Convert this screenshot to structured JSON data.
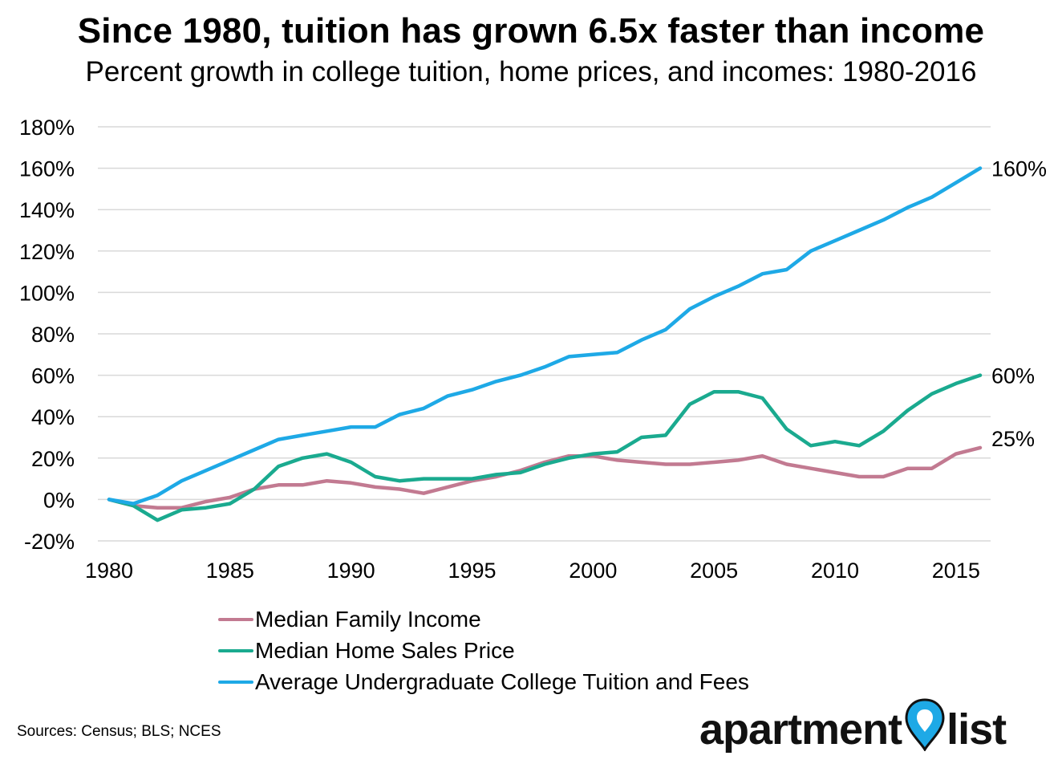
{
  "header": {
    "title": "Since 1980, tuition has grown 6.5x faster than income",
    "subtitle": "Percent growth in college tuition, home prices, and incomes: 1980-2016"
  },
  "chart_data": {
    "type": "line",
    "title": "Since 1980, tuition has grown 6.5x faster than income",
    "subtitle": "Percent growth in college tuition, home prices, and incomes: 1980-2016",
    "xlabel": "",
    "ylabel": "",
    "x": [
      1980,
      1981,
      1982,
      1983,
      1984,
      1985,
      1986,
      1987,
      1988,
      1989,
      1990,
      1991,
      1992,
      1993,
      1994,
      1995,
      1996,
      1997,
      1998,
      1999,
      2000,
      2001,
      2002,
      2003,
      2004,
      2005,
      2006,
      2007,
      2008,
      2009,
      2010,
      2011,
      2012,
      2013,
      2014,
      2015,
      2016
    ],
    "xlim": [
      1980,
      2016
    ],
    "ylim": [
      -20,
      180
    ],
    "grid": true,
    "x_ticks": [
      "1980",
      "1985",
      "1990",
      "1995",
      "2000",
      "2005",
      "2010",
      "2015"
    ],
    "x_tick_values": [
      1980,
      1985,
      1990,
      1995,
      2000,
      2005,
      2010,
      2015
    ],
    "y_ticks": [
      "-20%",
      "0%",
      "20%",
      "40%",
      "60%",
      "80%",
      "100%",
      "120%",
      "140%",
      "160%",
      "180%"
    ],
    "y_tick_values": [
      -20,
      0,
      20,
      40,
      60,
      80,
      100,
      120,
      140,
      160,
      180
    ],
    "series": [
      {
        "name": "Median Family Income",
        "color": "#c27a91",
        "values": [
          0,
          -3,
          -4,
          -4,
          -1,
          1,
          5,
          7,
          7,
          9,
          8,
          6,
          5,
          3,
          6,
          9,
          11,
          14,
          18,
          21,
          21,
          19,
          18,
          17,
          17,
          18,
          19,
          21,
          17,
          15,
          13,
          11,
          11,
          15,
          15,
          22,
          25
        ],
        "end_label": "25%"
      },
      {
        "name": "Median Home Sales Price",
        "color": "#1aaa8f",
        "values": [
          0,
          -3,
          -10,
          -5,
          -4,
          -2,
          5,
          16,
          20,
          22,
          18,
          11,
          9,
          10,
          10,
          10,
          12,
          13,
          17,
          20,
          22,
          23,
          30,
          31,
          46,
          52,
          52,
          49,
          34,
          26,
          28,
          26,
          33,
          43,
          51,
          56,
          60
        ],
        "end_label": "60%"
      },
      {
        "name": "Average Undergraduate College Tuition and Fees",
        "color": "#1ea9e6",
        "values": [
          0,
          -2,
          2,
          9,
          14,
          19,
          24,
          29,
          31,
          33,
          35,
          35,
          41,
          44,
          50,
          53,
          57,
          60,
          64,
          69,
          70,
          71,
          77,
          82,
          92,
          98,
          103,
          109,
          111,
          120,
          125,
          130,
          135,
          141,
          146,
          153,
          160
        ],
        "end_label": "160%"
      }
    ],
    "legend_position": "bottom-left"
  },
  "footer": {
    "sources": "Sources: Census; BLS; NCES",
    "logo_left": "apartment",
    "logo_right": "list",
    "logo_icon": "map-pin-icon",
    "logo_pin_color": "#1ea9e6"
  }
}
